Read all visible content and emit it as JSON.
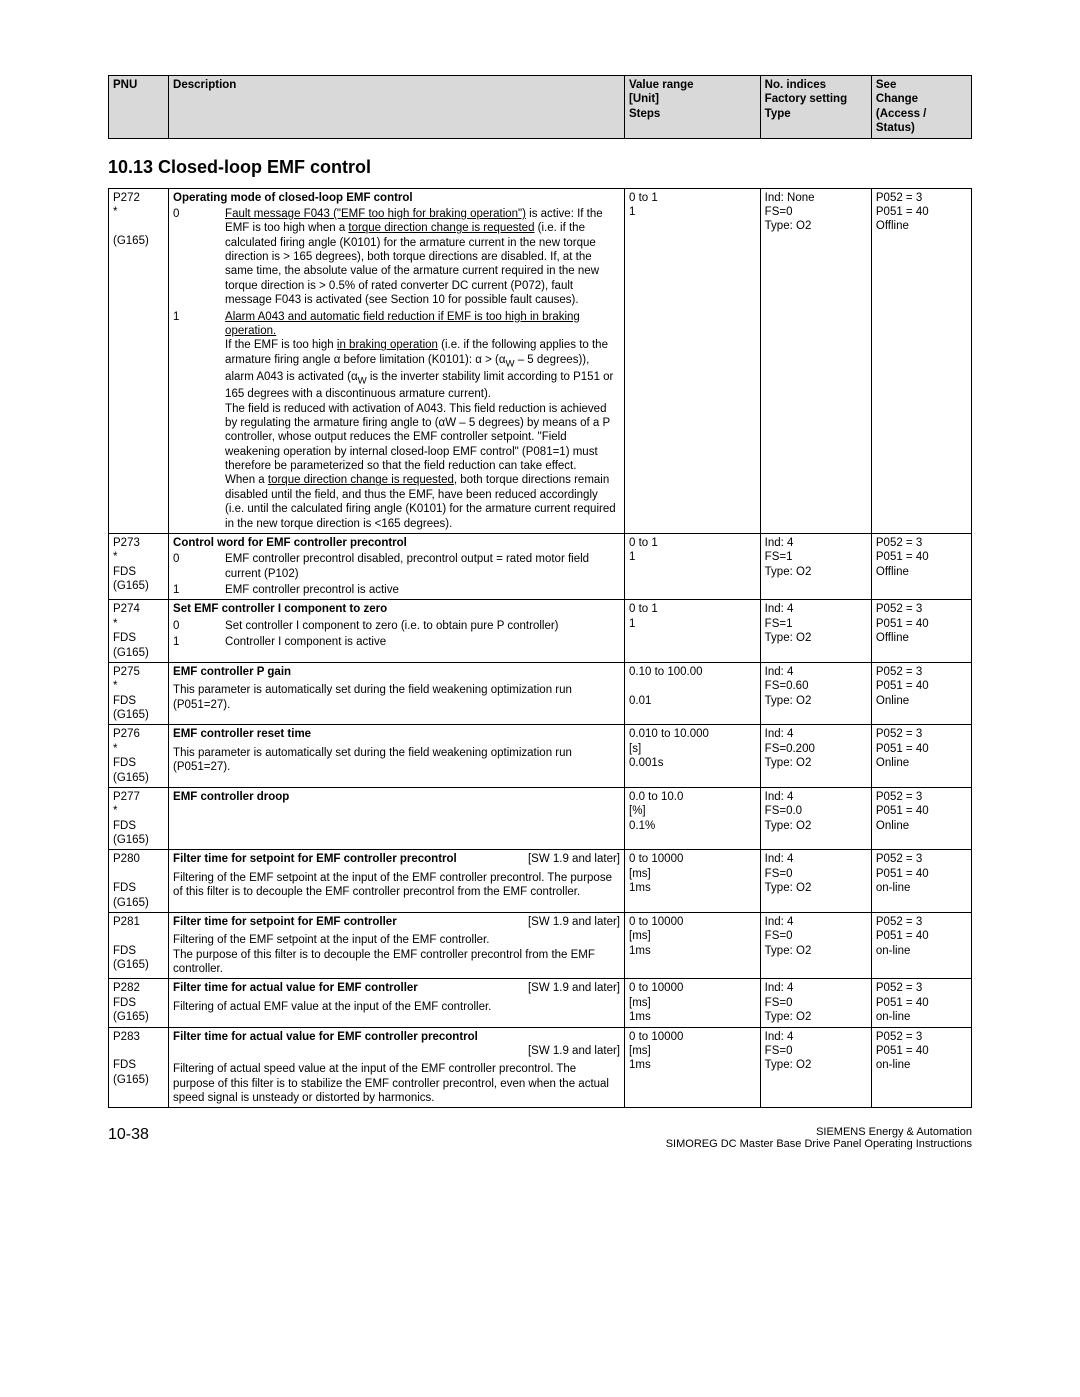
{
  "header": {
    "pnu": "PNU",
    "desc": "Description",
    "range": "Value range\n[Unit]\nSteps",
    "indices": "No. indices\nFactory setting\nType",
    "see": "See\nChange\n(Access / Status)"
  },
  "section_title": "10.13  Closed-loop EMF control",
  "rows": [
    {
      "pnu": "P272\n*\n\n(G165)",
      "title": "Operating mode of closed-loop EMF control",
      "opts": [
        {
          "n": "0",
          "t": "<span class='u'>Fault message F043 (\"EMF too high for braking operation\")</span> is active: If the EMF is too high when a <span class='u'>torque direction change is requested</span> (i.e. if the calculated firing angle (K0101) for the armature current in the new torque direction is &gt; 165 degrees), both torque directions are disabled. If, at the same time, the absolute value of the armature current required in the new torque direction is &gt; 0.5% of rated converter DC current (P072), fault message F043 is activated (see Section 10 for possible fault causes)."
        },
        {
          "n": "1",
          "t": "<span class='u'>Alarm A043 and automatic field reduction if EMF is too high in braking operation.</span><br>If the EMF is too high <span class='u'>in braking operation</span> (i.e. if the following applies to the armature firing angle α before limitation (K0101): α &gt; (α<sub>W</sub> – 5 degrees)), alarm A043 is activated (α<sub>W</sub> is the inverter stability limit according to P151 or 165 degrees with a discontinuous armature current).<br>The field is reduced with activation of A043. This field reduction is achieved by regulating the armature firing angle to (αW – 5 degrees) by means of a P controller, whose output reduces the EMF controller setpoint. \"Field weakening operation by internal closed-loop EMF control\" (P081=1) must therefore be parameterized so that the field reduction can take effect.<br>When a <span class='u'>torque direction change is requested</span>, both torque directions remain disabled until the field, and thus the EMF, have been reduced accordingly (i.e. until the calculated firing angle (K0101) for the armature current required in the new torque direction is &lt;165 degrees)."
        }
      ],
      "range": "0 to 1\n1",
      "ind": "Ind: None\nFS=0\nType: O2",
      "see": "P052 = 3\nP051 = 40\nOffline"
    },
    {
      "pnu": "P273\n*\nFDS\n(G165)",
      "title": "Control word for EMF controller precontrol",
      "opts": [
        {
          "n": "0",
          "t": "EMF controller precontrol disabled, precontrol output = rated motor field current (P102)"
        },
        {
          "n": "1",
          "t": "EMF controller precontrol is active"
        }
      ],
      "range": "0 to 1\n1",
      "ind": "Ind: 4\nFS=1\nType: O2",
      "see": "P052 = 3\nP051 = 40\nOffline"
    },
    {
      "pnu": "P274\n*\nFDS\n(G165)",
      "title": "Set EMF controller I component to zero",
      "opts": [
        {
          "n": "0",
          "t": "Set controller I component to zero (i.e. to obtain pure P controller)"
        },
        {
          "n": "1",
          "t": "Controller I component is active"
        }
      ],
      "range": "0 to 1\n1",
      "ind": "Ind: 4\nFS=1\nType: O2",
      "see": "P052 = 3\nP051 = 40\nOffline"
    },
    {
      "pnu": "P275\n*\nFDS\n(G165)",
      "title": "EMF controller P gain",
      "body": "This parameter is automatically set during the field weakening optimization run (P051=27).",
      "range": "0.10 to 100.00\n\n0.01",
      "ind": "Ind: 4\nFS=0.60\nType: O2",
      "see": "P052 = 3\nP051 = 40\nOnline"
    },
    {
      "pnu": "P276\n*\nFDS\n(G165)",
      "title": "EMF controller reset time",
      "body": "This parameter is automatically set during the field weakening optimization run (P051=27).",
      "range": "0.010 to 10.000\n[s]\n0.001s",
      "ind": "Ind: 4\nFS=0.200\nType: O2",
      "see": "P052 = 3\nP051 = 40\nOnline"
    },
    {
      "pnu": "P277\n*\nFDS\n(G165)",
      "title": "EMF controller droop",
      "body": "",
      "range": "0.0 to 10.0\n[%]\n0.1%",
      "ind": "Ind: 4\nFS=0.0\nType: O2",
      "see": "P052 = 3\nP051 = 40\nOnline"
    },
    {
      "pnu": "P280\n\nFDS\n(G165)",
      "title": "Filter time for setpoint for EMF controller precontrol",
      "sw": "[SW 1.9 and later]",
      "body": "Filtering of the EMF setpoint at the input of the EMF controller precontrol. The purpose of this filter is to decouple the EMF controller precontrol from the EMF controller.",
      "range": "0 to 10000\n[ms]\n1ms",
      "ind": "Ind: 4\nFS=0\nType: O2",
      "see": "P052 = 3\nP051 = 40\non-line"
    },
    {
      "pnu": "P281\n\nFDS\n(G165)",
      "title": "Filter time for setpoint for EMF controller",
      "sw": "[SW 1.9 and later]",
      "body": "Filtering of the EMF setpoint at the input of the EMF controller.\nThe purpose of this filter is to decouple the EMF controller precontrol from the EMF controller.",
      "range": "0 to 10000\n[ms]\n1ms",
      "ind": "Ind: 4\nFS=0\nType: O2",
      "see": "P052 = 3\nP051 = 40\non-line"
    },
    {
      "pnu": "P282\nFDS\n(G165)",
      "title": "Filter time for actual value for EMF controller",
      "sw": "[SW 1.9 and later]",
      "body": "Filtering of actual EMF value at the input of the EMF controller.",
      "range": "0 to 10000\n[ms]\n1ms",
      "ind": "Ind: 4\nFS=0\nType: O2",
      "see": "P052 = 3\nP051 = 40\non-line"
    },
    {
      "pnu": "P283\n\nFDS\n(G165)",
      "title": "Filter time for actual value for EMF controller precontrol",
      "sw": "[SW 1.9 and later]",
      "sw_below": true,
      "body": "Filtering of actual speed value at the input of the EMF controller precontrol. The purpose of this filter is to stabilize the EMF controller precontrol, even when the actual speed signal is unsteady or distorted by harmonics.",
      "range": "0 to 10000\n[ms]\n1ms",
      "ind": "Ind: 4\nFS=0\nType: O2",
      "see": "P052 = 3\nP051 = 40\non-line"
    }
  ],
  "footer": {
    "page": "10-38",
    "right1": "SIEMENS Energy & Automation",
    "right2": "SIMOREG DC Master Base Drive Panel  Operating Instructions"
  }
}
